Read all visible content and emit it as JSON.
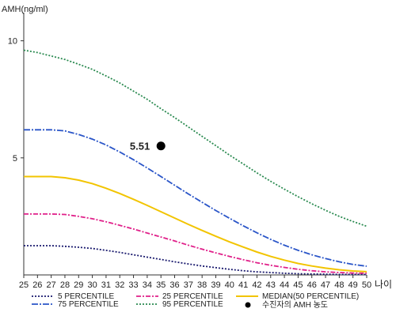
{
  "chart_data": {
    "type": "line",
    "ylabel": "AMH(ng/ml)",
    "xlabel": "나이",
    "xlim": [
      25,
      50
    ],
    "ylim": [
      0,
      11
    ],
    "x_ticks": [
      25,
      26,
      27,
      28,
      29,
      30,
      31,
      32,
      33,
      34,
      35,
      36,
      37,
      38,
      39,
      40,
      41,
      42,
      43,
      44,
      45,
      46,
      47,
      48,
      49,
      50
    ],
    "y_ticks": [
      5,
      10
    ],
    "x": [
      25,
      26,
      27,
      28,
      29,
      30,
      31,
      32,
      33,
      34,
      35,
      36,
      37,
      38,
      39,
      40,
      41,
      42,
      43,
      44,
      45,
      46,
      47,
      48,
      49,
      50
    ],
    "series": [
      {
        "name": "5 PERCENTILE",
        "color": "#1a1a6e",
        "dash": "2,2",
        "values": [
          1.25,
          1.25,
          1.25,
          1.22,
          1.18,
          1.13,
          1.05,
          0.96,
          0.86,
          0.76,
          0.66,
          0.56,
          0.47,
          0.38,
          0.31,
          0.24,
          0.18,
          0.13,
          0.1,
          0.07,
          0.05,
          0.04,
          0.03,
          0.02,
          0.02,
          0.02
        ]
      },
      {
        "name": "25 PERCENTILE",
        "color": "#e0218a",
        "dash": "6,2,2,2",
        "values": [
          2.6,
          2.6,
          2.6,
          2.58,
          2.5,
          2.4,
          2.27,
          2.12,
          1.96,
          1.79,
          1.62,
          1.45,
          1.27,
          1.1,
          0.94,
          0.79,
          0.65,
          0.52,
          0.41,
          0.32,
          0.24,
          0.18,
          0.13,
          0.1,
          0.08,
          0.07
        ]
      },
      {
        "name": "MEDIAN(50 PERCENTILE)",
        "color": "#f2c400",
        "dash": "",
        "values": [
          4.2,
          4.2,
          4.2,
          4.15,
          4.05,
          3.9,
          3.7,
          3.48,
          3.23,
          2.97,
          2.7,
          2.43,
          2.16,
          1.9,
          1.65,
          1.41,
          1.19,
          0.98,
          0.79,
          0.63,
          0.49,
          0.38,
          0.29,
          0.22,
          0.17,
          0.14
        ]
      },
      {
        "name": "75 PERCENTILE",
        "color": "#2a55c8",
        "dash": "8,2,2,2",
        "values": [
          6.2,
          6.2,
          6.2,
          6.15,
          6.0,
          5.8,
          5.55,
          5.25,
          4.92,
          4.57,
          4.2,
          3.83,
          3.46,
          3.1,
          2.75,
          2.42,
          2.1,
          1.8,
          1.52,
          1.27,
          1.05,
          0.86,
          0.7,
          0.56,
          0.45,
          0.37
        ]
      },
      {
        "name": "95 PERCENTILE",
        "color": "#2a8a50",
        "dash": "2,2",
        "values": [
          9.6,
          9.5,
          9.35,
          9.2,
          9.0,
          8.78,
          8.5,
          8.2,
          7.85,
          7.5,
          7.1,
          6.72,
          6.32,
          5.92,
          5.52,
          5.12,
          4.74,
          4.36,
          4.0,
          3.66,
          3.34,
          3.04,
          2.76,
          2.5,
          2.28,
          2.08
        ]
      }
    ],
    "marker": {
      "name": "수진자의 AMH 농도",
      "x": 35,
      "y": 5.51,
      "label": "5.51",
      "color": "#000000"
    }
  }
}
